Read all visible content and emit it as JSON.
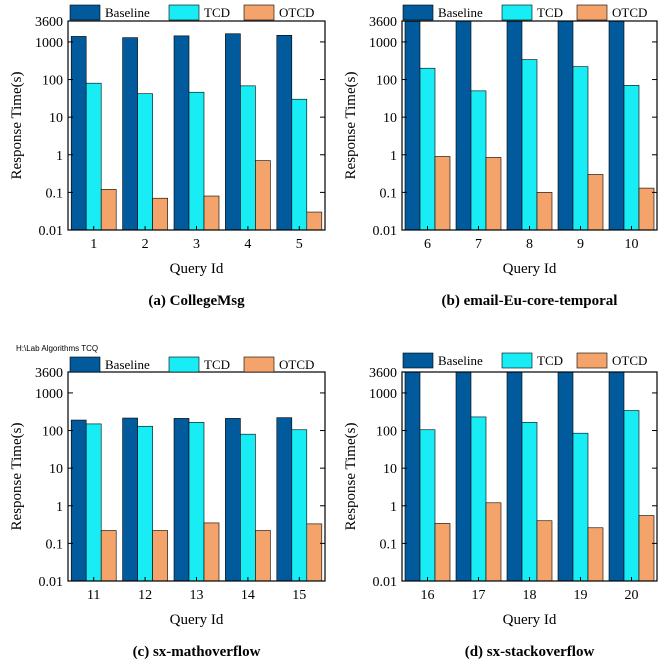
{
  "colors": {
    "Baseline": "#005a9c",
    "TCD": "#18ecf5",
    "OTCD": "#f4a46a"
  },
  "panel_note": "H:\\Lab Algorithms TCQ",
  "chart_data": [
    {
      "type": "bar",
      "caption": "(a) CollegeMsg",
      "categories": [
        "1",
        "2",
        "3",
        "4",
        "5"
      ],
      "series": [
        {
          "name": "Baseline",
          "values": [
            1400,
            1300,
            1450,
            1650,
            1500
          ]
        },
        {
          "name": "TCD",
          "values": [
            80,
            42,
            46,
            68,
            30
          ]
        },
        {
          "name": "OTCD",
          "values": [
            0.12,
            0.07,
            0.08,
            0.7,
            0.03
          ]
        }
      ],
      "xlabel": "Query Id",
      "ylabel": "Response Time(s)",
      "yscale": "log",
      "ylim": [
        0.01,
        3600
      ],
      "yticks": [
        "0.01",
        "0.1",
        "1",
        "10",
        "100",
        "1000",
        "3600"
      ],
      "legend": "top"
    },
    {
      "type": "bar",
      "caption": "(b) email-Eu-core-temporal",
      "categories": [
        "6",
        "7",
        "8",
        "9",
        "10"
      ],
      "series": [
        {
          "name": "Baseline",
          "values": [
            3600,
            3600,
            3600,
            3600,
            3600
          ]
        },
        {
          "name": "TCD",
          "values": [
            200,
            50,
            340,
            220,
            70
          ]
        },
        {
          "name": "OTCD",
          "values": [
            0.9,
            0.85,
            0.1,
            0.3,
            0.13
          ]
        }
      ],
      "xlabel": "Query Id",
      "ylabel": "Response Time(s)",
      "yscale": "log",
      "ylim": [
        0.01,
        3600
      ],
      "yticks": [
        "0.01",
        "0.1",
        "1",
        "10",
        "100",
        "1000",
        "3600"
      ],
      "legend": "top"
    },
    {
      "type": "bar",
      "caption": "(c) sx-mathoverflow",
      "categories": [
        "11",
        "12",
        "13",
        "14",
        "15"
      ],
      "series": [
        {
          "name": "Baseline",
          "values": [
            190,
            215,
            210,
            210,
            220
          ]
        },
        {
          "name": "TCD",
          "values": [
            150,
            130,
            165,
            80,
            105
          ]
        },
        {
          "name": "OTCD",
          "values": [
            0.22,
            0.22,
            0.35,
            0.22,
            0.33
          ]
        }
      ],
      "xlabel": "Query Id",
      "ylabel": "Response Time(s)",
      "yscale": "log",
      "ylim": [
        0.01,
        3600
      ],
      "yticks": [
        "0.01",
        "0.1",
        "1",
        "10",
        "100",
        "1000",
        "3600"
      ],
      "legend": "top"
    },
    {
      "type": "bar",
      "caption": "(d) sx-stackoverflow",
      "categories": [
        "16",
        "17",
        "18",
        "19",
        "20"
      ],
      "series": [
        {
          "name": "Baseline",
          "values": [
            3600,
            3600,
            3600,
            3600,
            3600
          ]
        },
        {
          "name": "TCD",
          "values": [
            105,
            230,
            165,
            85,
            340
          ]
        },
        {
          "name": "OTCD",
          "values": [
            0.34,
            1.2,
            0.4,
            0.26,
            0.55
          ]
        }
      ],
      "xlabel": "Query Id",
      "ylabel": "Response Time(s)",
      "yscale": "log",
      "ylim": [
        0.01,
        3600
      ],
      "yticks": [
        "0.01",
        "0.1",
        "1",
        "10",
        "100",
        "1000",
        "3600"
      ],
      "legend": "top"
    }
  ]
}
